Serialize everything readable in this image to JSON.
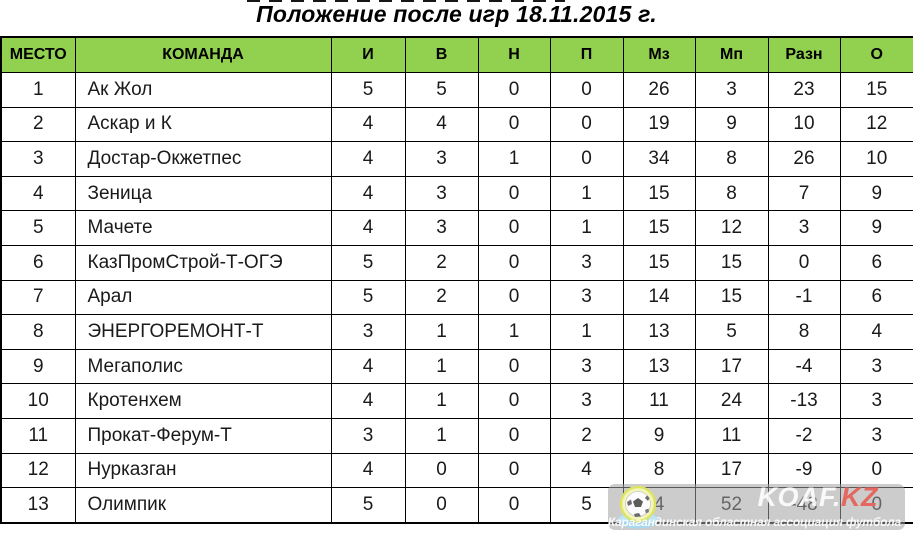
{
  "page": {
    "title": "Положение после игр 18.11.2015 г."
  },
  "table": {
    "columns": [
      {
        "key": "place",
        "label": "МЕСТО"
      },
      {
        "key": "team",
        "label": "КОМАНДА"
      },
      {
        "key": "i",
        "label": "И"
      },
      {
        "key": "v",
        "label": "В"
      },
      {
        "key": "n",
        "label": "Н"
      },
      {
        "key": "p",
        "label": "П"
      },
      {
        "key": "mz",
        "label": "Мз"
      },
      {
        "key": "mp",
        "label": "Мп"
      },
      {
        "key": "razn",
        "label": "Разн"
      },
      {
        "key": "o",
        "label": "О"
      }
    ],
    "rows": [
      {
        "place": "1",
        "team": "Ак Жол",
        "i": "5",
        "v": "5",
        "n": "0",
        "p": "0",
        "mz": "26",
        "mp": "3",
        "razn": "23",
        "o": "15"
      },
      {
        "place": "2",
        "team": "Аскар и К",
        "i": "4",
        "v": "4",
        "n": "0",
        "p": "0",
        "mz": "19",
        "mp": "9",
        "razn": "10",
        "o": "12"
      },
      {
        "place": "3",
        "team": "Достар-Окжетпес",
        "i": "4",
        "v": "3",
        "n": "1",
        "p": "0",
        "mz": "34",
        "mp": "8",
        "razn": "26",
        "o": "10"
      },
      {
        "place": "4",
        "team": "Зеница",
        "i": "4",
        "v": "3",
        "n": "0",
        "p": "1",
        "mz": "15",
        "mp": "8",
        "razn": "7",
        "o": "9"
      },
      {
        "place": "5",
        "team": "Мачете",
        "i": "4",
        "v": "3",
        "n": "0",
        "p": "1",
        "mz": "15",
        "mp": "12",
        "razn": "3",
        "o": "9"
      },
      {
        "place": "6",
        "team": "КазПромСтрой-Т-ОГЭ",
        "i": "5",
        "v": "2",
        "n": "0",
        "p": "3",
        "mz": "15",
        "mp": "15",
        "razn": "0",
        "o": "6"
      },
      {
        "place": "7",
        "team": "Арал",
        "i": "5",
        "v": "2",
        "n": "0",
        "p": "3",
        "mz": "14",
        "mp": "15",
        "razn": "-1",
        "o": "6"
      },
      {
        "place": "8",
        "team": "ЭНЕРГОРЕМОНТ-Т",
        "i": "3",
        "v": "1",
        "n": "1",
        "p": "1",
        "mz": "13",
        "mp": "5",
        "razn": "8",
        "o": "4"
      },
      {
        "place": "9",
        "team": "Мегаполис",
        "i": "4",
        "v": "1",
        "n": "0",
        "p": "3",
        "mz": "13",
        "mp": "17",
        "razn": "-4",
        "o": "3"
      },
      {
        "place": "10",
        "team": "Кротенхем",
        "i": "4",
        "v": "1",
        "n": "0",
        "p": "3",
        "mz": "11",
        "mp": "24",
        "razn": "-13",
        "o": "3"
      },
      {
        "place": "11",
        "team": "Прокат-Ферум-Т",
        "i": "3",
        "v": "1",
        "n": "0",
        "p": "2",
        "mz": "9",
        "mp": "11",
        "razn": "-2",
        "o": "3"
      },
      {
        "place": "12",
        "team": "Нурказган",
        "i": "4",
        "v": "0",
        "n": "0",
        "p": "4",
        "mz": "8",
        "mp": "17",
        "razn": "-9",
        "o": "0"
      },
      {
        "place": "13",
        "team": "Олимпик",
        "i": "5",
        "v": "0",
        "n": "0",
        "p": "5",
        "mz": "4",
        "mp": "52",
        "razn": "-48",
        "o": "0"
      }
    ]
  },
  "watermark": {
    "brand": "KOAF.",
    "brand_suffix": "KZ",
    "subtitle": "Карагандинская областная ассоциация футбола",
    "icon": "soccer-ball-icon"
  },
  "colors": {
    "header_bg": "#92d050",
    "brand_suffix": "#e4685f",
    "watermark_bg": "rgba(163,163,163,0.55)"
  }
}
